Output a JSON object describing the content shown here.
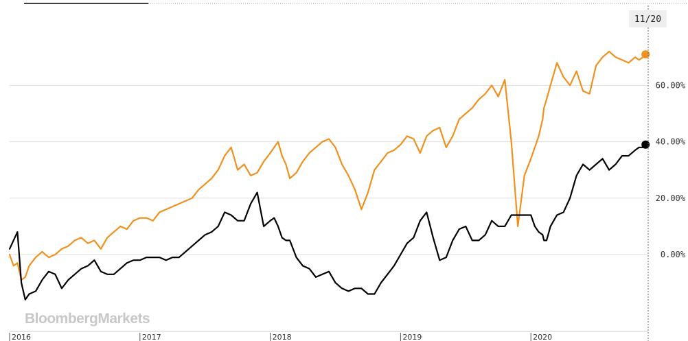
{
  "watermark": "BloombergMarkets",
  "crosshair_date": "11/20",
  "colors": {
    "series_a": "#f0901e",
    "series_b": "#000000",
    "grid": "#dddddd"
  },
  "chart_data": {
    "type": "line",
    "title": "",
    "xlabel": "",
    "ylabel": "",
    "y_unit": "%",
    "y_ticks": [
      "60.00%",
      "40.00%",
      "20.00%",
      "0.00%"
    ],
    "y_tick_values": [
      60,
      40,
      20,
      0
    ],
    "ylim": [
      -20,
      88
    ],
    "x_ticks": [
      "2016",
      "2017",
      "2018",
      "2019",
      "2020"
    ],
    "x_tick_years": [
      2016,
      2017,
      2018,
      2019,
      2020
    ],
    "xlim": [
      2016.0,
      2020.9
    ],
    "grid": true,
    "series": [
      {
        "color": "#f0901e",
        "x": [
          2016.0,
          2016.03,
          2016.06,
          2016.09,
          2016.12,
          2016.15,
          2016.2,
          2016.25,
          2016.3,
          2016.35,
          2016.4,
          2016.45,
          2016.5,
          2016.55,
          2016.6,
          2016.65,
          2016.7,
          2016.75,
          2016.8,
          2016.85,
          2016.9,
          2016.95,
          2017.0,
          2017.05,
          2017.1,
          2017.15,
          2017.2,
          2017.25,
          2017.3,
          2017.35,
          2017.4,
          2017.45,
          2017.5,
          2017.55,
          2017.6,
          2017.65,
          2017.7,
          2017.75,
          2017.8,
          2017.85,
          2017.9,
          2017.95,
          2018.0,
          2018.03,
          2018.06,
          2018.09,
          2018.12,
          2018.15,
          2018.2,
          2018.25,
          2018.3,
          2018.35,
          2018.4,
          2018.45,
          2018.5,
          2018.55,
          2018.6,
          2018.65,
          2018.7,
          2018.75,
          2018.8,
          2018.85,
          2018.9,
          2018.95,
          2019.0,
          2019.05,
          2019.1,
          2019.15,
          2019.2,
          2019.25,
          2019.3,
          2019.35,
          2019.4,
          2019.45,
          2019.5,
          2019.55,
          2019.6,
          2019.65,
          2019.7,
          2019.75,
          2019.8,
          2019.85,
          2019.9,
          2019.95,
          2020.0,
          2020.03,
          2020.06,
          2020.09,
          2020.1,
          2020.12,
          2020.15,
          2020.2,
          2020.25,
          2020.3,
          2020.35,
          2020.4,
          2020.45,
          2020.5,
          2020.55,
          2020.6,
          2020.65,
          2020.7,
          2020.75,
          2020.8,
          2020.83,
          2020.86,
          2020.88
        ],
        "y": [
          0,
          -4,
          -3,
          -9,
          -8,
          -4,
          -1,
          1,
          -1,
          0,
          2,
          3,
          5,
          6,
          4,
          5,
          2,
          6,
          8,
          10,
          9,
          12,
          13,
          13,
          12,
          15,
          16,
          17,
          18,
          19,
          20,
          23,
          25,
          27,
          30,
          35,
          38,
          30,
          32,
          28,
          29,
          33,
          36,
          38,
          40,
          35,
          32,
          27,
          29,
          33,
          36,
          38,
          40,
          41,
          38,
          32,
          28,
          23,
          16,
          22,
          30,
          33,
          36,
          37,
          39,
          42,
          41,
          36,
          42,
          44,
          45,
          38,
          42,
          48,
          50,
          52,
          55,
          57,
          60,
          56,
          62,
          40,
          10,
          28,
          34,
          38,
          42,
          48,
          52,
          55,
          60,
          68,
          63,
          60,
          65,
          58,
          57,
          67,
          70,
          72,
          70,
          69,
          68,
          70,
          69,
          70,
          71
        ],
        "end_marker": true
      },
      {
        "color": "#000000",
        "x": [
          2016.0,
          2016.03,
          2016.06,
          2016.09,
          2016.12,
          2016.15,
          2016.2,
          2016.25,
          2016.3,
          2016.35,
          2016.4,
          2016.45,
          2016.5,
          2016.55,
          2016.6,
          2016.65,
          2016.7,
          2016.75,
          2016.8,
          2016.85,
          2016.9,
          2016.95,
          2017.0,
          2017.05,
          2017.1,
          2017.15,
          2017.2,
          2017.25,
          2017.3,
          2017.35,
          2017.4,
          2017.45,
          2017.5,
          2017.55,
          2017.6,
          2017.65,
          2017.7,
          2017.75,
          2017.8,
          2017.85,
          2017.9,
          2017.95,
          2018.0,
          2018.03,
          2018.06,
          2018.09,
          2018.12,
          2018.15,
          2018.2,
          2018.25,
          2018.3,
          2018.35,
          2018.4,
          2018.45,
          2018.5,
          2018.55,
          2018.6,
          2018.65,
          2018.7,
          2018.75,
          2018.8,
          2018.85,
          2018.9,
          2018.95,
          2019.0,
          2019.05,
          2019.1,
          2019.15,
          2019.2,
          2019.25,
          2019.3,
          2019.35,
          2019.4,
          2019.45,
          2019.5,
          2019.55,
          2019.6,
          2019.65,
          2019.7,
          2019.75,
          2019.8,
          2019.85,
          2019.9,
          2019.95,
          2020.0,
          2020.03,
          2020.06,
          2020.09,
          2020.1,
          2020.12,
          2020.15,
          2020.2,
          2020.25,
          2020.3,
          2020.35,
          2020.4,
          2020.45,
          2020.5,
          2020.55,
          2020.6,
          2020.65,
          2020.7,
          2020.75,
          2020.8,
          2020.83,
          2020.86,
          2020.88
        ],
        "y": [
          2,
          5,
          8,
          -10,
          -16,
          -14,
          -13,
          -9,
          -6,
          -7,
          -12,
          -9,
          -7,
          -5,
          -4,
          -2,
          -6,
          -7,
          -7,
          -5,
          -3,
          -2,
          -2,
          -1,
          -1,
          -1,
          -2,
          -1,
          -1,
          1,
          3,
          5,
          7,
          8,
          10,
          15,
          14,
          12,
          12,
          18,
          22,
          10,
          12,
          13,
          10,
          6,
          5,
          5,
          -1,
          -4,
          -5,
          -8,
          -7,
          -6,
          -10,
          -12,
          -13,
          -12,
          -12,
          -14,
          -14,
          -10,
          -7,
          -4,
          0,
          4,
          6,
          12,
          15,
          6,
          -2,
          -1,
          5,
          9,
          10,
          5,
          5,
          7,
          12,
          10,
          10,
          14,
          14,
          14,
          14,
          10,
          8,
          7,
          5,
          5,
          10,
          14,
          15,
          20,
          28,
          32,
          30,
          32,
          34,
          30,
          32,
          35,
          35,
          37,
          38,
          38,
          39
        ],
        "end_marker": true
      }
    ]
  }
}
